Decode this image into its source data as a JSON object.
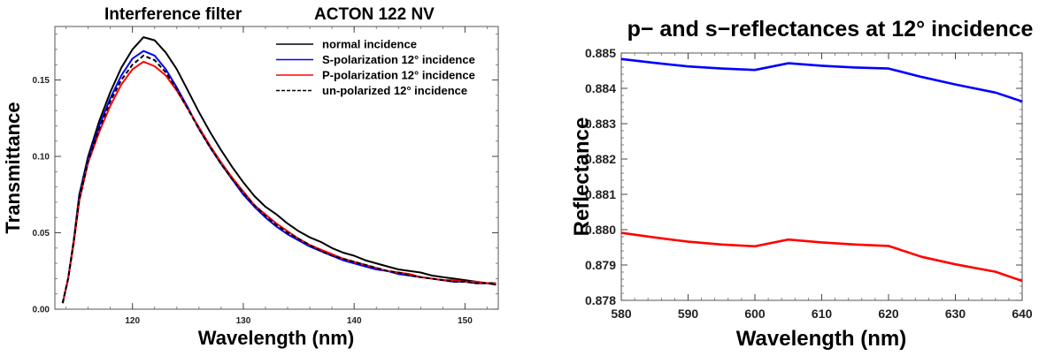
{
  "chart_data": [
    {
      "type": "line",
      "title": "Interference filter",
      "subtitle": "ACTON 122 NV",
      "xlabel": "Wavelength (nm)",
      "ylabel": "Transmittance",
      "xlim": [
        113,
        153
      ],
      "ylim": [
        0,
        0.185
      ],
      "xticks": [
        120,
        130,
        140,
        150
      ],
      "yticks": [
        0.0,
        0.05,
        0.1,
        0.15
      ],
      "ytick_labels": [
        "0.00",
        "0.05",
        "0.10",
        "0.15"
      ],
      "grid": false,
      "legend_position": "top-right",
      "series": [
        {
          "name": "normal incidence",
          "color": "#000000",
          "dash": "solid",
          "points": [
            [
              113.7,
              0.004
            ],
            [
              114.2,
              0.02
            ],
            [
              114.7,
              0.045
            ],
            [
              115.2,
              0.075
            ],
            [
              116,
              0.1
            ],
            [
              117,
              0.123
            ],
            [
              118,
              0.142
            ],
            [
              119,
              0.158
            ],
            [
              120,
              0.17
            ],
            [
              121,
              0.178
            ],
            [
              122,
              0.176
            ],
            [
              123,
              0.168
            ],
            [
              124,
              0.157
            ],
            [
              125,
              0.143
            ],
            [
              126,
              0.129
            ],
            [
              127,
              0.116
            ],
            [
              128,
              0.104
            ],
            [
              129,
              0.093
            ],
            [
              130,
              0.083
            ],
            [
              131,
              0.074
            ],
            [
              132,
              0.067
            ],
            [
              133,
              0.062
            ],
            [
              134,
              0.056
            ],
            [
              135,
              0.051
            ],
            [
              136,
              0.047
            ],
            [
              137,
              0.044
            ],
            [
              138,
              0.04
            ],
            [
              139,
              0.037
            ],
            [
              140,
              0.035
            ],
            [
              141,
              0.032
            ],
            [
              142,
              0.03
            ],
            [
              143,
              0.028
            ],
            [
              144,
              0.026
            ],
            [
              145,
              0.025
            ],
            [
              146,
              0.024
            ],
            [
              147,
              0.022
            ],
            [
              148,
              0.021
            ],
            [
              149,
              0.02
            ],
            [
              150,
              0.019
            ],
            [
              151,
              0.018
            ],
            [
              152,
              0.017
            ],
            [
              152.8,
              0.016
            ]
          ]
        },
        {
          "name": "S-polarization 12° incidence",
          "color": "#0000ff",
          "dash": "solid",
          "points": [
            [
              113.7,
              0.004
            ],
            [
              114.2,
              0.02
            ],
            [
              114.7,
              0.044
            ],
            [
              115.2,
              0.073
            ],
            [
              116,
              0.098
            ],
            [
              117,
              0.12
            ],
            [
              118,
              0.138
            ],
            [
              119,
              0.153
            ],
            [
              120,
              0.164
            ],
            [
              121,
              0.169
            ],
            [
              122,
              0.166
            ],
            [
              123,
              0.157
            ],
            [
              124,
              0.145
            ],
            [
              125,
              0.132
            ],
            [
              126,
              0.118
            ],
            [
              127,
              0.106
            ],
            [
              128,
              0.095
            ],
            [
              129,
              0.085
            ],
            [
              130,
              0.075
            ],
            [
              131,
              0.067
            ],
            [
              132,
              0.06
            ],
            [
              133,
              0.054
            ],
            [
              134,
              0.049
            ],
            [
              135,
              0.045
            ],
            [
              136,
              0.041
            ],
            [
              137,
              0.038
            ],
            [
              138,
              0.035
            ],
            [
              139,
              0.032
            ],
            [
              140,
              0.03
            ],
            [
              141,
              0.028
            ],
            [
              142,
              0.026
            ],
            [
              143,
              0.025
            ],
            [
              144,
              0.023
            ],
            [
              145,
              0.022
            ],
            [
              146,
              0.021
            ],
            [
              147,
              0.02
            ],
            [
              148,
              0.019
            ],
            [
              149,
              0.018
            ],
            [
              150,
              0.018
            ],
            [
              151,
              0.017
            ],
            [
              152,
              0.017
            ],
            [
              152.8,
              0.017
            ]
          ]
        },
        {
          "name": "P-polarization 12° incidence",
          "color": "#ff0000",
          "dash": "solid",
          "points": [
            [
              113.7,
              0.004
            ],
            [
              114.2,
              0.02
            ],
            [
              114.7,
              0.043
            ],
            [
              115.2,
              0.071
            ],
            [
              116,
              0.096
            ],
            [
              117,
              0.116
            ],
            [
              118,
              0.133
            ],
            [
              119,
              0.147
            ],
            [
              120,
              0.157
            ],
            [
              121,
              0.162
            ],
            [
              122,
              0.159
            ],
            [
              123,
              0.153
            ],
            [
              124,
              0.143
            ],
            [
              125,
              0.131
            ],
            [
              126,
              0.119
            ],
            [
              127,
              0.107
            ],
            [
              128,
              0.096
            ],
            [
              129,
              0.086
            ],
            [
              130,
              0.077
            ],
            [
              131,
              0.068
            ],
            [
              132,
              0.062
            ],
            [
              133,
              0.056
            ],
            [
              134,
              0.051
            ],
            [
              135,
              0.046
            ],
            [
              136,
              0.042
            ],
            [
              137,
              0.039
            ],
            [
              138,
              0.036
            ],
            [
              139,
              0.033
            ],
            [
              140,
              0.031
            ],
            [
              141,
              0.029
            ],
            [
              142,
              0.027
            ],
            [
              143,
              0.025
            ],
            [
              144,
              0.024
            ],
            [
              145,
              0.023
            ],
            [
              146,
              0.021
            ],
            [
              147,
              0.02
            ],
            [
              148,
              0.019
            ],
            [
              149,
              0.019
            ],
            [
              150,
              0.018
            ],
            [
              151,
              0.018
            ],
            [
              152,
              0.017
            ],
            [
              152.8,
              0.017
            ]
          ]
        },
        {
          "name": "un-polarized 12° incidence",
          "color": "#000000",
          "dash": "dashed",
          "points": [
            [
              113.7,
              0.004
            ],
            [
              114.2,
              0.02
            ],
            [
              114.7,
              0.044
            ],
            [
              115.2,
              0.072
            ],
            [
              116,
              0.097
            ],
            [
              117,
              0.118
            ],
            [
              118,
              0.136
            ],
            [
              119,
              0.15
            ],
            [
              120,
              0.16
            ],
            [
              121,
              0.166
            ],
            [
              122,
              0.163
            ],
            [
              123,
              0.155
            ],
            [
              124,
              0.144
            ],
            [
              125,
              0.131
            ],
            [
              126,
              0.118
            ],
            [
              127,
              0.106
            ],
            [
              128,
              0.095
            ],
            [
              129,
              0.085
            ],
            [
              130,
              0.076
            ],
            [
              131,
              0.068
            ],
            [
              132,
              0.061
            ],
            [
              133,
              0.055
            ],
            [
              134,
              0.05
            ],
            [
              135,
              0.046
            ],
            [
              136,
              0.042
            ],
            [
              137,
              0.038
            ],
            [
              138,
              0.035
            ],
            [
              139,
              0.033
            ],
            [
              140,
              0.031
            ],
            [
              141,
              0.029
            ],
            [
              142,
              0.027
            ],
            [
              143,
              0.025
            ],
            [
              144,
              0.024
            ],
            [
              145,
              0.022
            ],
            [
              146,
              0.021
            ],
            [
              147,
              0.02
            ],
            [
              148,
              0.019
            ],
            [
              149,
              0.018
            ],
            [
              150,
              0.018
            ],
            [
              151,
              0.017
            ],
            [
              152,
              0.017
            ],
            [
              152.8,
              0.017
            ]
          ]
        }
      ]
    },
    {
      "type": "line",
      "title": "p− and s−reflectances at 12° incidence",
      "xlabel": "Wavelength (nm)",
      "ylabel": "Reflectance",
      "xlim": [
        580,
        640
      ],
      "ylim": [
        0.878,
        0.885
      ],
      "xticks": [
        580,
        590,
        600,
        610,
        620,
        630,
        640
      ],
      "yticks": [
        0.878,
        0.879,
        0.88,
        0.881,
        0.882,
        0.883,
        0.884,
        0.885
      ],
      "ytick_labels": [
        "0.878",
        "0.879",
        "0.880",
        "0.881",
        "0.882",
        "0.883",
        "0.884",
        "0.885"
      ],
      "grid": false,
      "series": [
        {
          "color": "#0000ff",
          "points": [
            [
              580,
              0.88483
            ],
            [
              585,
              0.88472
            ],
            [
              590,
              0.88462
            ],
            [
              595,
              0.88456
            ],
            [
              600,
              0.88452
            ],
            [
              605,
              0.88471
            ],
            [
              610,
              0.88464
            ],
            [
              615,
              0.88459
            ],
            [
              620,
              0.88456
            ],
            [
              625,
              0.88432
            ],
            [
              630,
              0.88411
            ],
            [
              636,
              0.88388
            ],
            [
              640,
              0.88363
            ]
          ]
        },
        {
          "color": "#ff0000",
          "points": [
            [
              580,
              0.87991
            ],
            [
              585,
              0.87978
            ],
            [
              590,
              0.87966
            ],
            [
              595,
              0.87958
            ],
            [
              600,
              0.87953
            ],
            [
              605,
              0.87972
            ],
            [
              610,
              0.87964
            ],
            [
              615,
              0.87958
            ],
            [
              620,
              0.87954
            ],
            [
              625,
              0.87923
            ],
            [
              630,
              0.87902
            ],
            [
              636,
              0.87881
            ],
            [
              640,
              0.87855
            ]
          ]
        }
      ]
    }
  ]
}
